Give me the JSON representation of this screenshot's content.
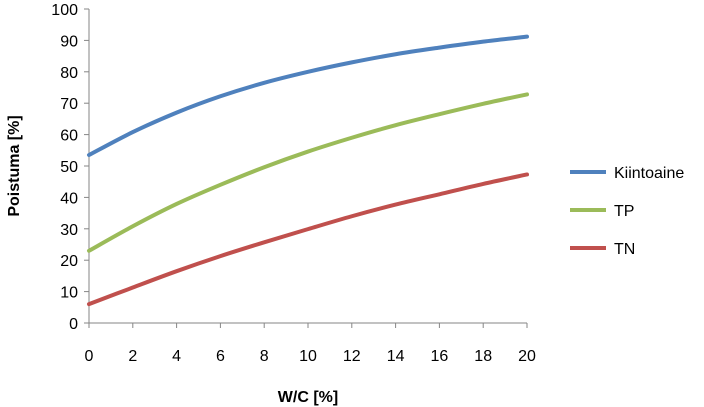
{
  "chart_data": {
    "type": "line",
    "xlabel": "W/C [%]",
    "ylabel": "Poistuma [%]",
    "xlim": [
      0,
      20
    ],
    "ylim": [
      0,
      100
    ],
    "x_ticks": [
      0,
      2,
      4,
      6,
      8,
      10,
      12,
      14,
      16,
      18,
      20
    ],
    "y_ticks": [
      0,
      10,
      20,
      30,
      40,
      50,
      60,
      70,
      80,
      90,
      100
    ],
    "grid": false,
    "legend_position": "right",
    "x": [
      0,
      2,
      4,
      6,
      8,
      10,
      12,
      14,
      16,
      18,
      20
    ],
    "series": [
      {
        "name": "Kiintoaine",
        "color": "#4F81BD",
        "values": [
          53.5,
          60.8,
          67.0,
          72.2,
          76.5,
          80.0,
          83.0,
          85.6,
          87.7,
          89.6,
          91.2
        ]
      },
      {
        "name": "TP",
        "color": "#9BBB59",
        "values": [
          23.0,
          30.8,
          37.9,
          44.0,
          49.6,
          54.6,
          59.0,
          63.0,
          66.5,
          69.8,
          72.8
        ]
      },
      {
        "name": "TN",
        "color": "#C0504D",
        "values": [
          6.0,
          11.3,
          16.5,
          21.3,
          25.7,
          29.9,
          34.0,
          37.7,
          41.0,
          44.3,
          47.3
        ]
      }
    ]
  }
}
